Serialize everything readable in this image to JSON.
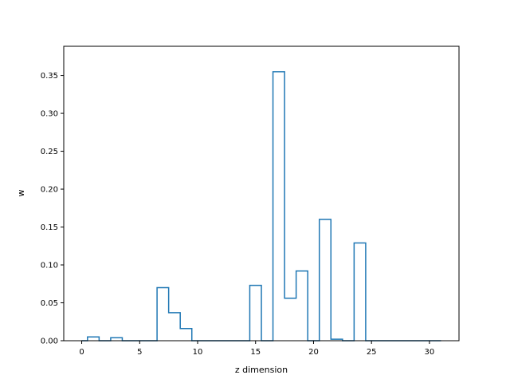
{
  "chart_data": {
    "type": "step",
    "title": "",
    "xlabel": "z dimension",
    "ylabel": "w",
    "x": [
      0,
      1,
      2,
      3,
      4,
      5,
      6,
      7,
      8,
      9,
      10,
      11,
      12,
      13,
      14,
      15,
      16,
      17,
      18,
      19,
      20,
      21,
      22,
      23,
      24,
      25,
      26,
      27,
      28,
      29,
      30,
      31
    ],
    "values": [
      0.0,
      0.005,
      0.0,
      0.004,
      0.0,
      0.0,
      0.0,
      0.07,
      0.037,
      0.016,
      0.0,
      0.0,
      0.0,
      0.0,
      0.0,
      0.073,
      0.0,
      0.355,
      0.056,
      0.092,
      0.0,
      0.16,
      0.002,
      0.0,
      0.129,
      0.0,
      0.0,
      0.0,
      0.0,
      0.0,
      0.0,
      0.0
    ],
    "xlim": [
      -1.55,
      32.55
    ],
    "ylim": [
      0.0,
      0.3885
    ],
    "xticks": [
      0,
      5,
      10,
      15,
      20,
      25,
      30
    ],
    "xtick_labels": [
      "0",
      "5",
      "10",
      "15",
      "20",
      "25",
      "30"
    ],
    "yticks": [
      0.0,
      0.05,
      0.1,
      0.15,
      0.2,
      0.25,
      0.3,
      0.35
    ],
    "ytick_labels": [
      "0.00",
      "0.05",
      "0.10",
      "0.15",
      "0.20",
      "0.25",
      "0.30",
      "0.35"
    ],
    "grid": false,
    "line_color": "#1f77b4"
  }
}
